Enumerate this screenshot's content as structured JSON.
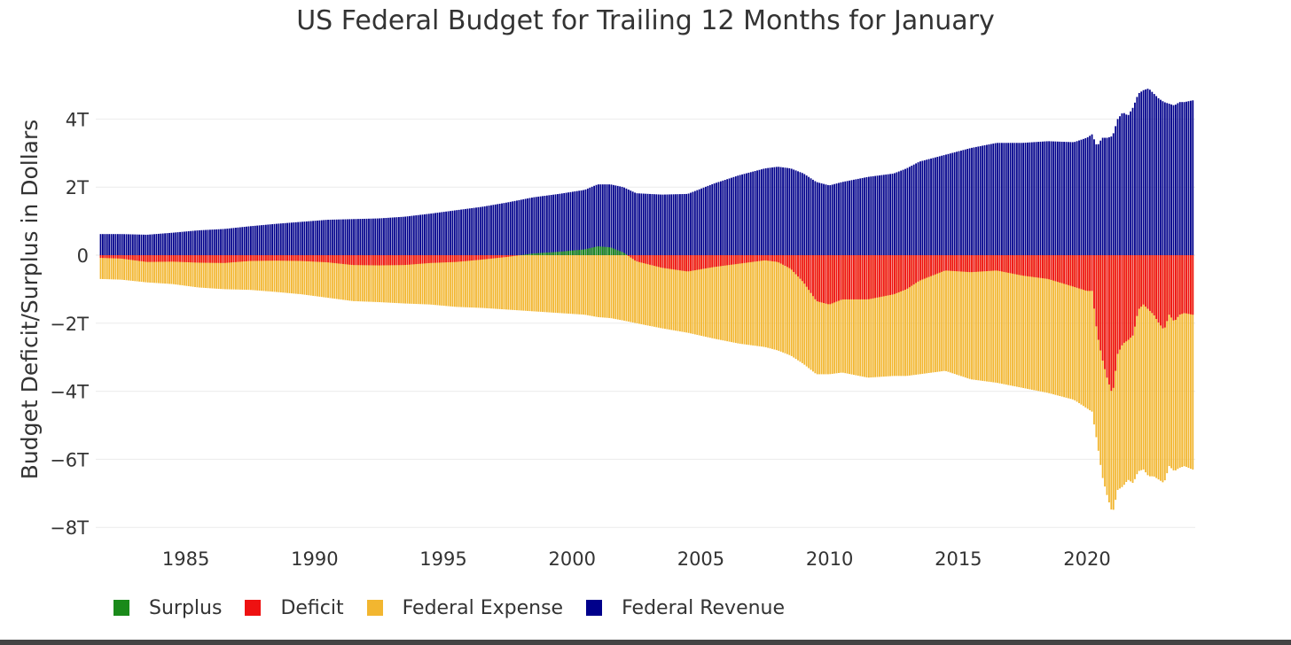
{
  "chart_data": {
    "type": "bar",
    "title": "US Federal Budget for Trailing 12 Months for January",
    "xlabel": "",
    "ylabel": "Budget Deficit/Surplus in Dollars",
    "ylim": [
      -8.0,
      5.0
    ],
    "xlim": [
      1981.5,
      2024.2
    ],
    "grid": true,
    "legend_position": "bottom-left",
    "y_ticks": [
      {
        "value": 4,
        "label": "4T"
      },
      {
        "value": 2,
        "label": "2T"
      },
      {
        "value": 0,
        "label": "0"
      },
      {
        "value": -2,
        "label": "−2T"
      },
      {
        "value": -4,
        "label": "−4T"
      },
      {
        "value": -6,
        "label": "−6T"
      },
      {
        "value": -8,
        "label": "−8T"
      }
    ],
    "x_ticks": [
      {
        "value": 1985,
        "label": "1985"
      },
      {
        "value": 1990,
        "label": "1990"
      },
      {
        "value": 1995,
        "label": "1995"
      },
      {
        "value": 2000,
        "label": "2000"
      },
      {
        "value": 2005,
        "label": "2005"
      },
      {
        "value": 2010,
        "label": "2010"
      },
      {
        "value": 2015,
        "label": "2015"
      },
      {
        "value": 2020,
        "label": "2020"
      }
    ],
    "series": [
      {
        "name": "Surplus",
        "color": "#1a8a1a"
      },
      {
        "name": "Deficit",
        "color": "#ee1111"
      },
      {
        "name": "Federal Expense",
        "color": "#f2b630"
      },
      {
        "name": "Federal Revenue",
        "color": "#00008b"
      }
    ],
    "x": [
      1981.7,
      1982.5,
      1983.5,
      1984.5,
      1985.5,
      1986.5,
      1987.5,
      1988.5,
      1989.5,
      1990.5,
      1991.5,
      1992.5,
      1993.5,
      1994.5,
      1995.5,
      1996.5,
      1997.5,
      1998.5,
      1999.5,
      2000.5,
      2001.0,
      2001.5,
      2002.0,
      2002.5,
      2003.5,
      2004.5,
      2005.5,
      2006.5,
      2007.5,
      2008.0,
      2008.5,
      2009.0,
      2009.5,
      2010.0,
      2010.5,
      2011.5,
      2012.5,
      2013.0,
      2013.5,
      2014.5,
      2015.5,
      2016.5,
      2017.5,
      2018.5,
      2019.5,
      2020.0,
      2020.2,
      2020.4,
      2020.6,
      2020.8,
      2021.0,
      2021.2,
      2021.4,
      2021.6,
      2021.8,
      2022.0,
      2022.2,
      2022.4,
      2022.6,
      2022.8,
      2023.0,
      2023.2,
      2023.4,
      2023.6,
      2023.8,
      2024.1
    ],
    "revenue": [
      0.62,
      0.62,
      0.6,
      0.66,
      0.73,
      0.77,
      0.85,
      0.92,
      0.98,
      1.04,
      1.06,
      1.08,
      1.13,
      1.22,
      1.32,
      1.42,
      1.55,
      1.7,
      1.8,
      1.92,
      2.08,
      2.08,
      2.0,
      1.82,
      1.78,
      1.8,
      2.1,
      2.35,
      2.55,
      2.6,
      2.55,
      2.4,
      2.15,
      2.05,
      2.15,
      2.3,
      2.4,
      2.55,
      2.75,
      2.95,
      3.15,
      3.3,
      3.3,
      3.35,
      3.32,
      3.45,
      3.55,
      3.2,
      3.45,
      3.45,
      3.5,
      4.0,
      4.2,
      4.1,
      4.35,
      4.75,
      4.85,
      4.9,
      4.75,
      4.6,
      4.5,
      4.45,
      4.4,
      4.5,
      4.5,
      4.55
    ],
    "expense": [
      0.7,
      0.72,
      0.8,
      0.85,
      0.95,
      1.0,
      1.02,
      1.08,
      1.15,
      1.25,
      1.35,
      1.38,
      1.42,
      1.45,
      1.52,
      1.55,
      1.6,
      1.65,
      1.7,
      1.75,
      1.82,
      1.85,
      1.92,
      2.0,
      2.15,
      2.28,
      2.45,
      2.6,
      2.7,
      2.8,
      2.95,
      3.2,
      3.5,
      3.5,
      3.45,
      3.6,
      3.55,
      3.55,
      3.5,
      3.4,
      3.65,
      3.75,
      3.9,
      4.05,
      4.25,
      4.5,
      4.6,
      5.5,
      6.5,
      7.1,
      7.6,
      6.9,
      6.8,
      6.6,
      6.7,
      6.35,
      6.3,
      6.5,
      6.5,
      6.6,
      6.7,
      6.2,
      6.35,
      6.25,
      6.2,
      6.3
    ]
  },
  "legend": {
    "surplus": "Surplus",
    "deficit": "Deficit",
    "expense": "Federal Expense",
    "revenue": "Federal Revenue"
  }
}
